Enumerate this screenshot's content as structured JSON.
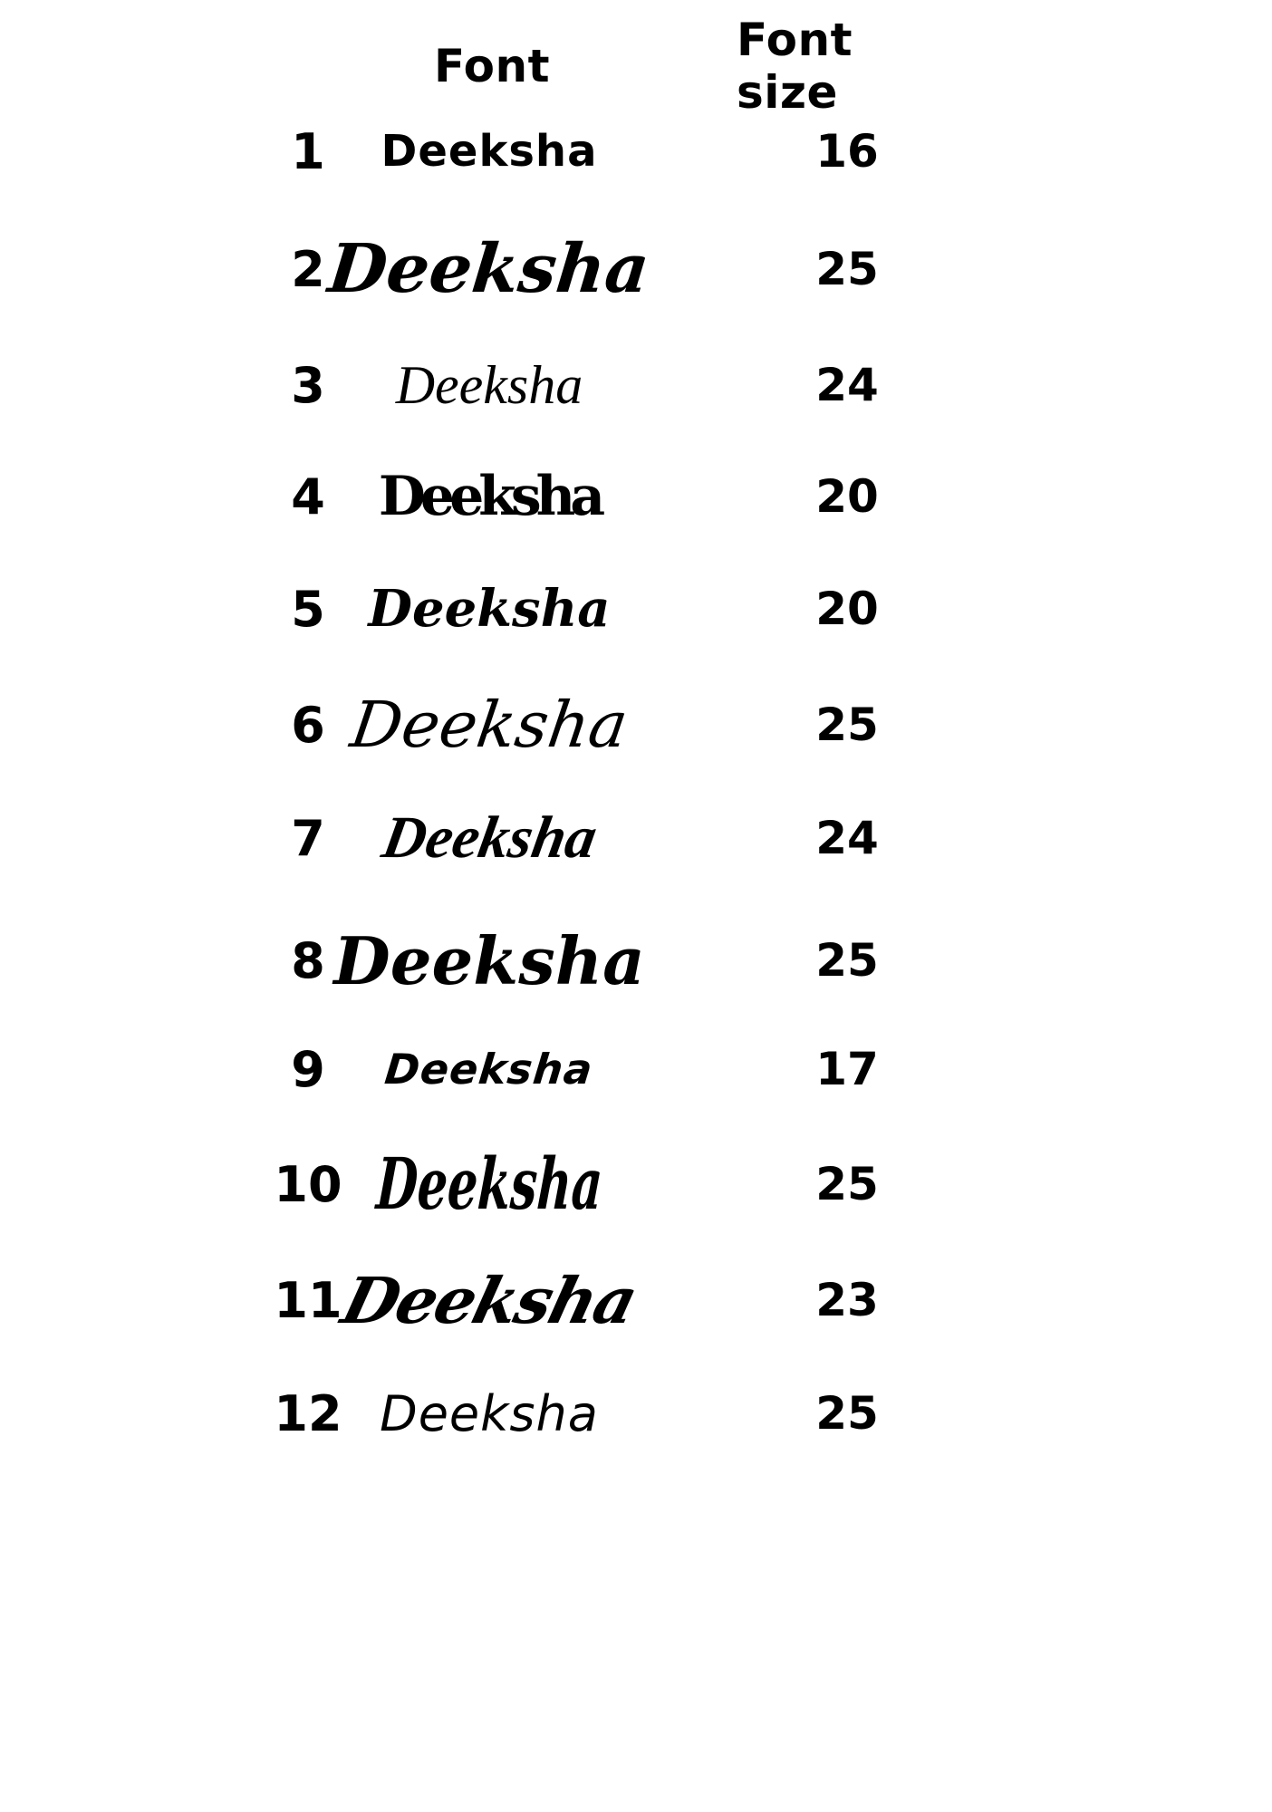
{
  "page": {
    "background_color": "#ffffff",
    "text_color": "#000000",
    "description": "Font selection proof sheet showing the name Deeksha in 12 fonts"
  },
  "table": {
    "headers": {
      "font": "Font",
      "font_size": "Font size"
    },
    "rows": [
      {
        "num": "1",
        "sample": "Deeksha",
        "size": "16",
        "font_style": "heavy geometric sans"
      },
      {
        "num": "2",
        "sample": "Deeksha",
        "size": "25",
        "font_style": "bold bouncy brush script"
      },
      {
        "num": "3",
        "sample": "Deeksha",
        "size": "24",
        "font_style": "elegant retro script with swash D"
      },
      {
        "num": "4",
        "sample": "Deeksha",
        "size": "20",
        "font_style": "fat overlapping display serif"
      },
      {
        "num": "5",
        "sample": "Deeksha",
        "size": "20",
        "font_style": "bold italic display serif"
      },
      {
        "num": "6",
        "sample": "Deeksha",
        "size": "25",
        "font_style": "casual connected script"
      },
      {
        "num": "7",
        "sample": "Deeksha",
        "size": "24",
        "font_style": "slanted brush script"
      },
      {
        "num": "8",
        "sample": "Deeksha",
        "size": "25",
        "font_style": "bold connected calligraphic script"
      },
      {
        "num": "9",
        "sample": "Deeksha",
        "size": "17",
        "font_style": "heavy marker brush italic"
      },
      {
        "num": "10",
        "sample": "Deeksha",
        "size": "25",
        "font_style": "tall condensed brush script"
      },
      {
        "num": "11",
        "sample": "Deeksha",
        "size": "23",
        "font_style": "retro swash script"
      },
      {
        "num": "12",
        "sample": "Deeksha",
        "size": "25",
        "font_style": "casual calligraphic pen script"
      }
    ]
  }
}
